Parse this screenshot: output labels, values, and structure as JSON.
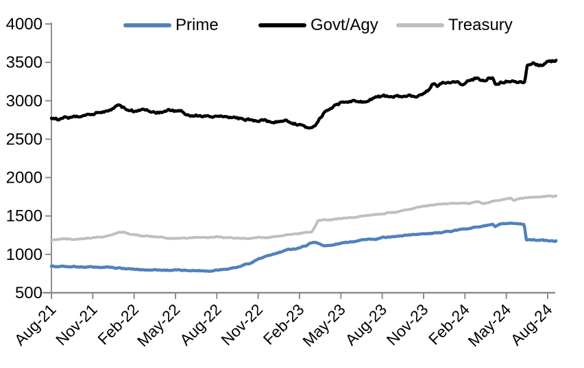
{
  "chart_data": {
    "type": "line",
    "title": "",
    "xlabel": "",
    "ylabel": "",
    "grid": false,
    "legend_position": "top",
    "axis_color": "#8C8C8C",
    "text_color": "#000000",
    "ylim": [
      500,
      4000
    ],
    "y_ticks": [
      4000,
      3500,
      3000,
      2500,
      2000,
      1500,
      1000,
      500
    ],
    "x_tick_labels": [
      "Aug-21",
      "Nov-21",
      "Feb-22",
      "May-22",
      "Aug-22",
      "Nov-22",
      "Feb-23",
      "May-23",
      "Aug-23",
      "Nov-23",
      "Feb-24",
      "May-24",
      "Aug-24"
    ],
    "x_unit": "months since Aug-2021 (3 months per axis tick)",
    "series": [
      {
        "name": "Prime",
        "color": "#4F81BD",
        "stroke_width": 4.5,
        "noise": [
          5,
          5
        ],
        "points": [
          [
            0,
            845
          ],
          [
            0.5,
            843
          ],
          [
            1,
            841
          ],
          [
            2,
            838
          ],
          [
            3,
            836
          ],
          [
            4,
            830
          ],
          [
            5,
            818
          ],
          [
            6,
            806
          ],
          [
            7,
            799
          ],
          [
            8,
            796
          ],
          [
            9,
            793
          ],
          [
            10,
            789
          ],
          [
            11,
            787
          ],
          [
            11.6,
            786
          ],
          [
            12,
            800
          ],
          [
            12.5,
            804
          ],
          [
            13,
            818
          ],
          [
            13.5,
            832
          ],
          [
            14,
            862
          ],
          [
            14.5,
            892
          ],
          [
            15,
            935
          ],
          [
            15.5,
            972
          ],
          [
            16,
            1002
          ],
          [
            16.5,
            1024
          ],
          [
            17,
            1048
          ],
          [
            17.2,
            1068
          ],
          [
            17.6,
            1072
          ],
          [
            18,
            1086
          ],
          [
            18.5,
            1112
          ],
          [
            19,
            1165
          ],
          [
            19.3,
            1148
          ],
          [
            19.8,
            1108
          ],
          [
            20.2,
            1118
          ],
          [
            20.6,
            1132
          ],
          [
            21,
            1142
          ],
          [
            21.5,
            1158
          ],
          [
            22,
            1172
          ],
          [
            22.5,
            1188
          ],
          [
            23,
            1200
          ],
          [
            23.3,
            1193
          ],
          [
            23.7,
            1204
          ],
          [
            24,
            1218
          ],
          [
            24.5,
            1228
          ],
          [
            25,
            1236
          ],
          [
            25.5,
            1246
          ],
          [
            26,
            1254
          ],
          [
            26.5,
            1262
          ],
          [
            27,
            1268
          ],
          [
            27.5,
            1276
          ],
          [
            28,
            1282
          ],
          [
            28.5,
            1292
          ],
          [
            29,
            1300
          ],
          [
            29.5,
            1315
          ],
          [
            30,
            1332
          ],
          [
            30.5,
            1348
          ],
          [
            31,
            1362
          ],
          [
            31.5,
            1376
          ],
          [
            32,
            1388
          ],
          [
            32.2,
            1360
          ],
          [
            32.5,
            1386
          ],
          [
            33,
            1398
          ],
          [
            33.5,
            1404
          ],
          [
            34,
            1398
          ],
          [
            34.3,
            1392
          ],
          [
            34.45,
            1195
          ],
          [
            35,
            1192
          ],
          [
            35.6,
            1184
          ],
          [
            36,
            1180
          ],
          [
            36.6,
            1177
          ]
        ]
      },
      {
        "name": "Govt/Agy",
        "color": "#000000",
        "stroke_width": 4.5,
        "noise": [
          12,
          10
        ],
        "points": [
          [
            0,
            2775
          ],
          [
            0.6,
            2768
          ],
          [
            1,
            2788
          ],
          [
            1.5,
            2780
          ],
          [
            2,
            2802
          ],
          [
            2.5,
            2815
          ],
          [
            3,
            2832
          ],
          [
            3.5,
            2845
          ],
          [
            4,
            2868
          ],
          [
            4.4,
            2890
          ],
          [
            4.9,
            2938
          ],
          [
            5.4,
            2900
          ],
          [
            6,
            2862
          ],
          [
            6.5,
            2890
          ],
          [
            7,
            2878
          ],
          [
            7.5,
            2852
          ],
          [
            8,
            2846
          ],
          [
            8.6,
            2880
          ],
          [
            9,
            2866
          ],
          [
            9.4,
            2874
          ],
          [
            10,
            2798
          ],
          [
            10.5,
            2812
          ],
          [
            11,
            2806
          ],
          [
            11.5,
            2796
          ],
          [
            12,
            2796
          ],
          [
            12.5,
            2786
          ],
          [
            13,
            2776
          ],
          [
            13.5,
            2766
          ],
          [
            14,
            2752
          ],
          [
            14.4,
            2760
          ],
          [
            15,
            2742
          ],
          [
            15.5,
            2750
          ],
          [
            16,
            2722
          ],
          [
            16.5,
            2732
          ],
          [
            17,
            2748
          ],
          [
            17.4,
            2700
          ],
          [
            18,
            2686
          ],
          [
            18.7,
            2648
          ],
          [
            19.1,
            2656
          ],
          [
            19.4,
            2752
          ],
          [
            20,
            2892
          ],
          [
            20.5,
            2926
          ],
          [
            21,
            2962
          ],
          [
            21.5,
            2986
          ],
          [
            22,
            3008
          ],
          [
            22.4,
            2990
          ],
          [
            23,
            2998
          ],
          [
            23.5,
            3046
          ],
          [
            24,
            3062
          ],
          [
            24.5,
            3040
          ],
          [
            25,
            3058
          ],
          [
            25.6,
            3046
          ],
          [
            26,
            3078
          ],
          [
            26.4,
            3035
          ],
          [
            27,
            3090
          ],
          [
            27.4,
            3162
          ],
          [
            27.7,
            3230
          ],
          [
            28,
            3180
          ],
          [
            28.5,
            3240
          ],
          [
            29,
            3230
          ],
          [
            29.4,
            3260
          ],
          [
            29.8,
            3215
          ],
          [
            30.2,
            3250
          ],
          [
            30.8,
            3300
          ],
          [
            31.2,
            3258
          ],
          [
            31.6,
            3280
          ],
          [
            32,
            3296
          ],
          [
            32.25,
            3212
          ],
          [
            32.6,
            3245
          ],
          [
            33,
            3240
          ],
          [
            33.4,
            3252
          ],
          [
            33.8,
            3236
          ],
          [
            34.35,
            3248
          ],
          [
            34.5,
            3462
          ],
          [
            34.9,
            3480
          ],
          [
            35.3,
            3455
          ],
          [
            35.7,
            3478
          ],
          [
            36,
            3500
          ],
          [
            36.6,
            3528
          ]
        ]
      },
      {
        "name": "Treasury",
        "color": "#BFBFBF",
        "stroke_width": 4,
        "noise": [
          5,
          5
        ],
        "points": [
          [
            0,
            1193
          ],
          [
            0.5,
            1196
          ],
          [
            1,
            1199
          ],
          [
            1.5,
            1196
          ],
          [
            2,
            1204
          ],
          [
            2.5,
            1208
          ],
          [
            3,
            1214
          ],
          [
            3.5,
            1222
          ],
          [
            4,
            1238
          ],
          [
            4.5,
            1264
          ],
          [
            4.9,
            1292
          ],
          [
            5.3,
            1284
          ],
          [
            5.8,
            1262
          ],
          [
            6.3,
            1248
          ],
          [
            7,
            1233
          ],
          [
            7.5,
            1228
          ],
          [
            8,
            1222
          ],
          [
            8.5,
            1216
          ],
          [
            9,
            1208
          ],
          [
            9.5,
            1212
          ],
          [
            10,
            1215
          ],
          [
            10.5,
            1218
          ],
          [
            11,
            1221
          ],
          [
            11.5,
            1223
          ],
          [
            12,
            1226
          ],
          [
            12.5,
            1222
          ],
          [
            13,
            1218
          ],
          [
            13.5,
            1212
          ],
          [
            14,
            1207
          ],
          [
            14.5,
            1212
          ],
          [
            15,
            1217
          ],
          [
            15.5,
            1214
          ],
          [
            16,
            1228
          ],
          [
            16.5,
            1238
          ],
          [
            17,
            1252
          ],
          [
            17.5,
            1262
          ],
          [
            18,
            1270
          ],
          [
            18.5,
            1282
          ],
          [
            18.9,
            1292
          ],
          [
            19.35,
            1438
          ],
          [
            19.7,
            1452
          ],
          [
            20,
            1448
          ],
          [
            20.5,
            1456
          ],
          [
            21,
            1464
          ],
          [
            21.5,
            1474
          ],
          [
            22,
            1484
          ],
          [
            22.5,
            1496
          ],
          [
            23,
            1506
          ],
          [
            23.5,
            1514
          ],
          [
            24,
            1528
          ],
          [
            24.5,
            1540
          ],
          [
            25,
            1552
          ],
          [
            25.5,
            1568
          ],
          [
            26,
            1585
          ],
          [
            26.5,
            1605
          ],
          [
            27,
            1622
          ],
          [
            27.5,
            1635
          ],
          [
            28,
            1645
          ],
          [
            28.5,
            1652
          ],
          [
            29,
            1658
          ],
          [
            29.5,
            1665
          ],
          [
            30,
            1672
          ],
          [
            30.3,
            1662
          ],
          [
            30.7,
            1680
          ],
          [
            31,
            1685
          ],
          [
            31.3,
            1658
          ],
          [
            31.7,
            1676
          ],
          [
            32,
            1690
          ],
          [
            32.5,
            1702
          ],
          [
            33,
            1722
          ],
          [
            33.3,
            1730
          ],
          [
            33.6,
            1704
          ],
          [
            34,
            1728
          ],
          [
            34.5,
            1738
          ],
          [
            35,
            1745
          ],
          [
            35.5,
            1750
          ],
          [
            36,
            1757
          ],
          [
            36.6,
            1763
          ]
        ]
      }
    ]
  }
}
